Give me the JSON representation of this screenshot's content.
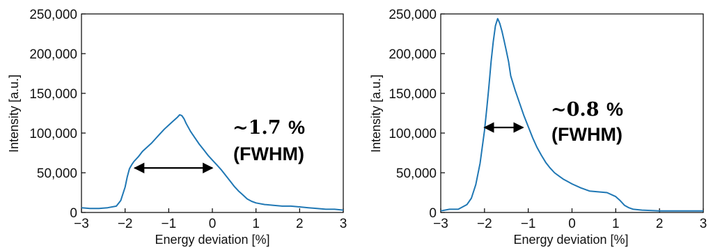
{
  "chart_data": [
    {
      "type": "line",
      "title": "",
      "xlabel": "Energy deviation [%]",
      "ylabel": "Intensity [a.u.]",
      "xlim": [
        -3,
        3
      ],
      "ylim": [
        0,
        250000
      ],
      "xticks": [
        -3,
        -2,
        -1,
        0,
        1,
        2,
        3
      ],
      "xtick_labels": [
        "−3",
        "−2",
        "−1",
        "0",
        "1",
        "2",
        "3"
      ],
      "yticks": [
        0,
        50000,
        100000,
        150000,
        200000,
        250000
      ],
      "ytick_labels": [
        "0",
        "50,000",
        "100,000",
        "150,000",
        "200,000",
        "250,000"
      ],
      "grid": false,
      "line_color": "#1f77b4",
      "arrow_color": "#000000",
      "series": [
        {
          "x": [
            -3.0,
            -2.8,
            -2.6,
            -2.4,
            -2.2,
            -2.1,
            -2.0,
            -1.95,
            -1.9,
            -1.85,
            -1.8,
            -1.7,
            -1.6,
            -1.5,
            -1.4,
            -1.3,
            -1.2,
            -1.1,
            -1.0,
            -0.9,
            -0.8,
            -0.75,
            -0.7,
            -0.65,
            -0.6,
            -0.5,
            -0.4,
            -0.3,
            -0.2,
            -0.1,
            0.0,
            0.1,
            0.2,
            0.3,
            0.4,
            0.5,
            0.6,
            0.7,
            0.8,
            0.9,
            1.0,
            1.2,
            1.4,
            1.6,
            1.8,
            2.0,
            2.2,
            2.4,
            2.6,
            2.8,
            3.0
          ],
          "y": [
            6000,
            5000,
            5000,
            6000,
            8000,
            15000,
            32000,
            45000,
            55000,
            60000,
            64000,
            70000,
            77000,
            82000,
            87000,
            93000,
            99000,
            105000,
            110000,
            115000,
            120000,
            123000,
            122000,
            118000,
            112000,
            102000,
            94000,
            86000,
            79000,
            72000,
            66000,
            60000,
            54000,
            47000,
            40000,
            33000,
            27000,
            22000,
            17000,
            14000,
            12000,
            10000,
            9000,
            8000,
            8000,
            7000,
            6000,
            5000,
            4000,
            4000,
            3000
          ]
        }
      ],
      "annotation": {
        "value_text": "~1.7",
        "unit_text": "%",
        "label_text": "(FWHM)"
      },
      "arrow": {
        "x_start": -1.78,
        "x_end": 0.0,
        "y": 56000
      }
    },
    {
      "type": "line",
      "title": "",
      "xlabel": "Energy deviation [%]",
      "ylabel": "Intensity [a.u.]",
      "xlim": [
        -3,
        3
      ],
      "ylim": [
        0,
        250000
      ],
      "xticks": [
        -3,
        -2,
        -1,
        0,
        1,
        2,
        3
      ],
      "xtick_labels": [
        "−3",
        "−2",
        "−1",
        "0",
        "1",
        "2",
        "3"
      ],
      "yticks": [
        0,
        50000,
        100000,
        150000,
        200000,
        250000
      ],
      "ytick_labels": [
        "0",
        "50,000",
        "100,000",
        "150,000",
        "200,000",
        "250,000"
      ],
      "grid": false,
      "line_color": "#1f77b4",
      "arrow_color": "#000000",
      "series": [
        {
          "x": [
            -3.0,
            -2.8,
            -2.6,
            -2.4,
            -2.3,
            -2.2,
            -2.1,
            -2.0,
            -1.95,
            -1.9,
            -1.85,
            -1.8,
            -1.75,
            -1.7,
            -1.68,
            -1.65,
            -1.6,
            -1.55,
            -1.5,
            -1.45,
            -1.4,
            -1.3,
            -1.2,
            -1.1,
            -1.0,
            -0.9,
            -0.8,
            -0.7,
            -0.6,
            -0.5,
            -0.4,
            -0.3,
            -0.2,
            -0.1,
            0.0,
            0.2,
            0.4,
            0.6,
            0.8,
            1.0,
            1.1,
            1.2,
            1.3,
            1.4,
            1.6,
            2.0,
            2.4,
            2.8,
            3.0
          ],
          "y": [
            2000,
            4000,
            4000,
            10000,
            18000,
            35000,
            62000,
            103000,
            130000,
            158000,
            190000,
            215000,
            235000,
            244000,
            242000,
            238000,
            228000,
            216000,
            203000,
            190000,
            172000,
            154000,
            138000,
            122000,
            108000,
            94000,
            82000,
            72000,
            63000,
            56000,
            50000,
            46000,
            42000,
            39000,
            36000,
            31000,
            27000,
            26000,
            25000,
            20000,
            15000,
            9000,
            6000,
            4000,
            3000,
            2000,
            2000,
            2000,
            2000
          ]
        }
      ],
      "annotation": {
        "value_text": "~0.8",
        "unit_text": "%",
        "label_text": "(FWHM)"
      },
      "arrow": {
        "x_start": -2.0,
        "x_end": -1.12,
        "y": 107000
      }
    }
  ]
}
